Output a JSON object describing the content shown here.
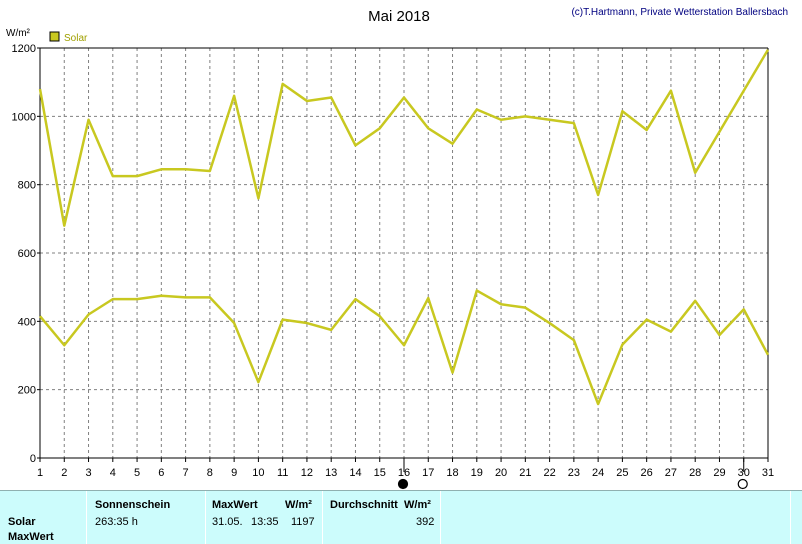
{
  "header": {
    "title": "Mai 2018",
    "copyright": "(c)T.Hartmann, Private Wetterstation Ballersbach",
    "unit": "W/m²"
  },
  "legend": {
    "label": "Solar",
    "color": "#c8c820"
  },
  "chart_data": {
    "type": "line",
    "x": [
      1,
      2,
      3,
      4,
      5,
      6,
      7,
      8,
      9,
      10,
      11,
      12,
      13,
      14,
      15,
      16,
      17,
      18,
      19,
      20,
      21,
      22,
      23,
      24,
      25,
      26,
      27,
      28,
      29,
      30,
      31
    ],
    "ylim": [
      0,
      1200
    ],
    "yticks": [
      0,
      200,
      400,
      600,
      800,
      1000,
      1200
    ],
    "xlim": [
      1,
      31
    ],
    "grid": true,
    "legend_position": "top-left",
    "series": [
      {
        "name": "Solar",
        "color": "#c8c820",
        "values": [
          1080,
          680,
          990,
          825,
          825,
          845,
          845,
          840,
          1060,
          760,
          1095,
          1045,
          1055,
          915,
          965,
          1055,
          965,
          920,
          1020,
          990,
          1000,
          990,
          980,
          770,
          1015,
          960,
          1075,
          835,
          955,
          1075,
          1195
        ]
      },
      {
        "name": "",
        "color": "#c8c820",
        "values": [
          415,
          330,
          420,
          465,
          465,
          475,
          470,
          470,
          395,
          222,
          405,
          395,
          375,
          465,
          415,
          330,
          468,
          250,
          490,
          450,
          440,
          395,
          345,
          158,
          332,
          405,
          370,
          460,
          360,
          435,
          302
        ]
      }
    ],
    "markers": [
      {
        "day": 16,
        "type": "full-moon"
      },
      {
        "day": 30,
        "type": "new-moon"
      }
    ]
  },
  "stats": {
    "row_labels": [
      "Solar",
      "MaxWert"
    ],
    "sunshine_header": "Sonnenschein",
    "sunshine_value": "263:35 h",
    "max_header": "MaxWert",
    "max_unit": "W/m²",
    "max_date": "31.05.",
    "max_time": "13:35",
    "max_value": "1197",
    "avg_header": "Durchschnitt",
    "avg_unit": "W/m²",
    "avg_value": "392"
  }
}
